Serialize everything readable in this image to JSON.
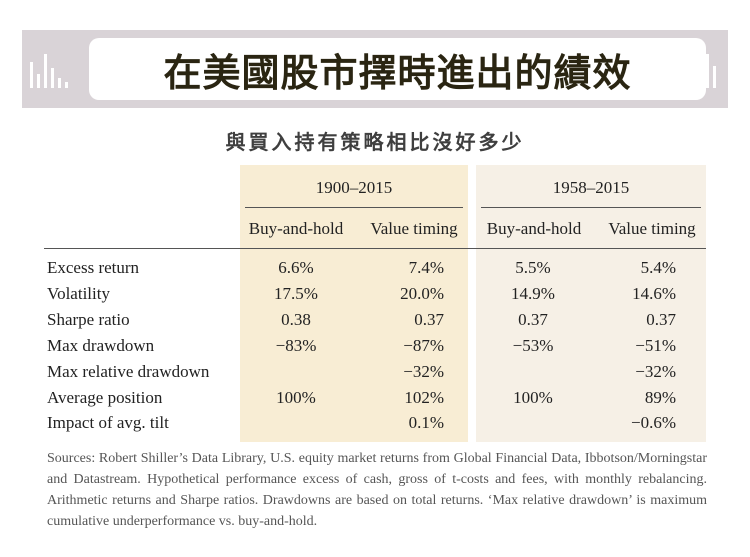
{
  "header": {
    "title": "在美國股市擇時進出的績效"
  },
  "subtitle": "與買入持有策略相比沒好多少",
  "table": {
    "periods": [
      "1900–2015",
      "1958–2015"
    ],
    "columns": [
      "Buy-and-hold",
      "Value timing",
      "Buy-and-hold",
      "Value timing"
    ],
    "rows": [
      {
        "label": "Excess return",
        "values": [
          "6.6%",
          "7.4%",
          "5.5%",
          "5.4%"
        ]
      },
      {
        "label": "Volatility",
        "values": [
          "17.5%",
          "20.0%",
          "14.9%",
          "14.6%"
        ]
      },
      {
        "label": "Sharpe ratio",
        "values": [
          "0.38",
          "0.37",
          "0.37",
          "0.37"
        ]
      },
      {
        "label": "Max drawdown",
        "values": [
          "−83%",
          "−87%",
          "−53%",
          "−51%"
        ]
      },
      {
        "label": "Max relative drawdown",
        "values": [
          "",
          "−32%",
          "",
          "−32%"
        ]
      },
      {
        "label": "Average position",
        "values": [
          "100%",
          "102%",
          "100%",
          "89%"
        ]
      },
      {
        "label": "Impact of avg. tilt",
        "values": [
          "",
          "0.1%",
          "",
          "−0.6%"
        ]
      }
    ]
  },
  "notes": "Sources: Robert Shiller’s Data Library, U.S. equity market returns from Global Financial Data, Ibbotson/Morningstar and Datastream. Hypothetical performance excess of cash, gross of t-costs and fees, with monthly rebalancing. Arithmetic returns and Sharpe ratios. Drawdowns are based on total returns. ‘Max relative drawdown’ is maximum cumulative underperformance vs. buy-and-hold.",
  "colors": {
    "banner": "#d9d3d7",
    "panel_1900": "#f8edd4",
    "panel_1958": "#f6f0e6",
    "title": "#2a2512"
  }
}
